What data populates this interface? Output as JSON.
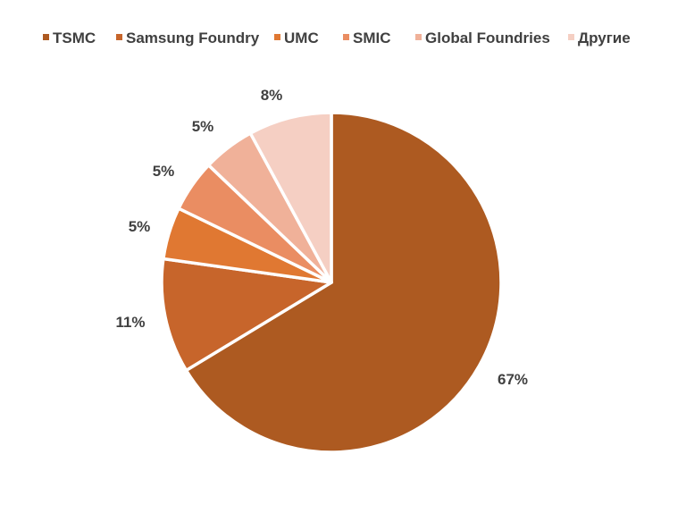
{
  "chart_data": {
    "type": "pie",
    "categories": [
      "TSMC",
      "Samsung Foundry",
      "UMC",
      "SMIC",
      "Global Foundries",
      "Другие"
    ],
    "values": [
      67,
      11,
      5,
      5,
      5,
      8
    ],
    "data_labels": [
      "67%",
      "11%",
      "5%",
      "5%",
      "5%",
      "8%"
    ],
    "colors": [
      "#ad5a21",
      "#c7652b",
      "#e07832",
      "#ea8d62",
      "#f0b199",
      "#f5cfc3"
    ],
    "legend_position": "top",
    "start_angle": "12 o'clock",
    "direction": "clockwise"
  }
}
